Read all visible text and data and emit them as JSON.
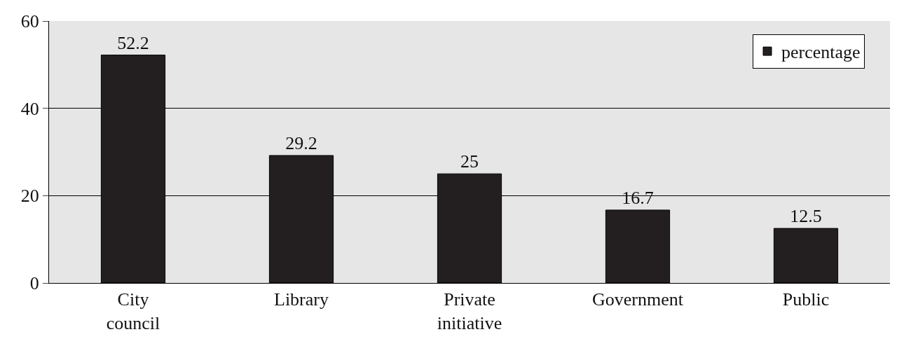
{
  "chart_data": {
    "type": "bar",
    "categories": [
      "City council",
      "Library",
      "Private initiative",
      "Government",
      "Public"
    ],
    "series": [
      {
        "name": "percentage",
        "color": "#231f20",
        "values": [
          52.2,
          29.2,
          25,
          16.7,
          12.5
        ]
      }
    ],
    "data_labels": true,
    "ylim": [
      0,
      60
    ],
    "yticks": [
      0,
      20,
      40,
      60
    ],
    "grid": "y",
    "legend": "top right"
  }
}
